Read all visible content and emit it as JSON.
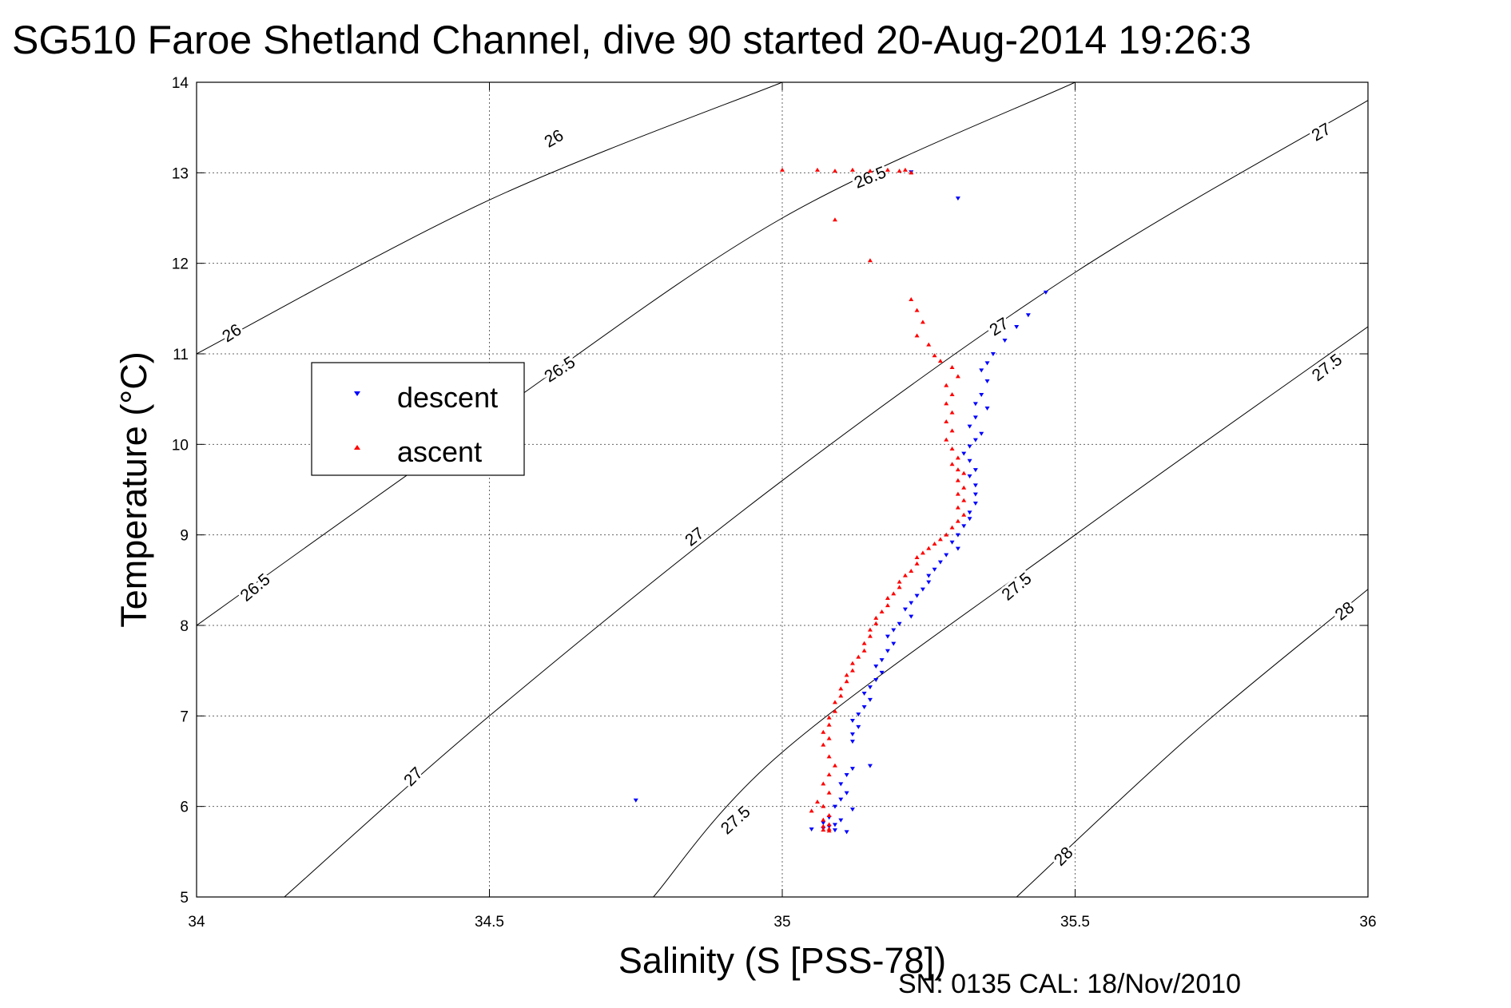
{
  "title": "SG510 Faroe Shetland Channel, dive 90 started 20-Aug-2014 19:26:3",
  "footer": "SN: 0135  CAL: 18/Nov/2010",
  "chart_data": {
    "type": "scatter",
    "title": "SG510 Faroe Shetland Channel, dive 90 started 20-Aug-2014 19:26:3",
    "xlabel": "Salinity (S [PSS-78])",
    "ylabel": "Temperature (°C)",
    "xlim": [
      34,
      36
    ],
    "ylim": [
      5,
      14
    ],
    "xticks": [
      34,
      34.5,
      35,
      35.5,
      36
    ],
    "xtick_labels": [
      "34",
      "34.5",
      "35",
      "35.5",
      "36"
    ],
    "yticks": [
      5,
      6,
      7,
      8,
      9,
      10,
      11,
      12,
      13,
      14
    ],
    "ytick_labels": [
      "5",
      "6",
      "7",
      "8",
      "9",
      "10",
      "11",
      "12",
      "13",
      "14"
    ],
    "grid": true,
    "legend_position": "upper-left",
    "contours": [
      {
        "level": "26",
        "points": [
          [
            34.0,
            11.0
          ],
          [
            34.5,
            12.7
          ],
          [
            35.0,
            14.0
          ]
        ]
      },
      {
        "level": "26.5",
        "points": [
          [
            34.0,
            8.0
          ],
          [
            34.5,
            10.3
          ],
          [
            35.0,
            12.5
          ],
          [
            35.5,
            14.0
          ]
        ]
      },
      {
        "level": "27",
        "points": [
          [
            34.15,
            5.0
          ],
          [
            34.5,
            7.0
          ],
          [
            35.0,
            9.6
          ],
          [
            35.5,
            11.9
          ],
          [
            36.0,
            13.8
          ]
        ]
      },
      {
        "level": "27.5",
        "points": [
          [
            34.78,
            5.0
          ],
          [
            35.0,
            6.6
          ],
          [
            35.5,
            9.0
          ],
          [
            36.0,
            11.3
          ]
        ]
      },
      {
        "level": "28",
        "points": [
          [
            35.4,
            5.0
          ],
          [
            35.7,
            6.8
          ],
          [
            36.0,
            8.4
          ]
        ]
      }
    ],
    "contour_labels": [
      {
        "text": "26",
        "x": 34.61,
        "y": 13.38,
        "angle": -30
      },
      {
        "text": "26",
        "x": 34.06,
        "y": 11.23,
        "angle": -33
      },
      {
        "text": "26.5",
        "x": 34.62,
        "y": 10.83,
        "angle": -33
      },
      {
        "text": "26.5",
        "x": 34.1,
        "y": 8.42,
        "angle": -40
      },
      {
        "text": "26.5",
        "x": 35.15,
        "y": 12.95,
        "angle": -22
      },
      {
        "text": "27",
        "x": 34.85,
        "y": 8.98,
        "angle": -38
      },
      {
        "text": "27",
        "x": 35.37,
        "y": 11.3,
        "angle": -32
      },
      {
        "text": "27",
        "x": 35.92,
        "y": 13.45,
        "angle": -30
      },
      {
        "text": "27",
        "x": 34.37,
        "y": 6.33,
        "angle": -45
      },
      {
        "text": "27.5",
        "x": 34.92,
        "y": 5.85,
        "angle": -42
      },
      {
        "text": "27.5",
        "x": 35.4,
        "y": 8.43,
        "angle": -40
      },
      {
        "text": "27.5",
        "x": 35.93,
        "y": 10.85,
        "angle": -38
      },
      {
        "text": "28",
        "x": 35.48,
        "y": 5.45,
        "angle": -45
      },
      {
        "text": "28",
        "x": 35.96,
        "y": 8.16,
        "angle": -38
      }
    ],
    "series": [
      {
        "name": "descent",
        "color": "#0000ff",
        "marker": "triangle-down",
        "points": [
          [
            34.75,
            6.07
          ],
          [
            35.3,
            12.72
          ],
          [
            35.22,
            13.01
          ],
          [
            35.45,
            11.68
          ],
          [
            35.42,
            11.43
          ],
          [
            35.4,
            11.3
          ],
          [
            35.38,
            11.15
          ],
          [
            35.36,
            11.0
          ],
          [
            35.35,
            10.9
          ],
          [
            35.34,
            10.82
          ],
          [
            35.35,
            10.7
          ],
          [
            35.34,
            10.55
          ],
          [
            35.33,
            10.45
          ],
          [
            35.35,
            10.4
          ],
          [
            35.33,
            10.3
          ],
          [
            35.32,
            10.2
          ],
          [
            35.34,
            10.12
          ],
          [
            35.33,
            10.05
          ],
          [
            35.32,
            9.98
          ],
          [
            35.31,
            9.9
          ],
          [
            35.32,
            9.82
          ],
          [
            35.33,
            9.72
          ],
          [
            35.32,
            9.65
          ],
          [
            35.33,
            9.55
          ],
          [
            35.33,
            9.45
          ],
          [
            35.33,
            9.35
          ],
          [
            35.32,
            9.25
          ],
          [
            35.32,
            9.18
          ],
          [
            35.31,
            9.1
          ],
          [
            35.3,
            9.0
          ],
          [
            35.29,
            8.92
          ],
          [
            35.3,
            8.85
          ],
          [
            35.28,
            8.78
          ],
          [
            35.27,
            8.7
          ],
          [
            35.26,
            8.62
          ],
          [
            35.25,
            8.55
          ],
          [
            35.25,
            8.48
          ],
          [
            35.24,
            8.4
          ],
          [
            35.23,
            8.33
          ],
          [
            35.22,
            8.25
          ],
          [
            35.21,
            8.18
          ],
          [
            35.22,
            8.1
          ],
          [
            35.2,
            8.02
          ],
          [
            35.19,
            7.95
          ],
          [
            35.18,
            7.88
          ],
          [
            35.19,
            7.8
          ],
          [
            35.18,
            7.72
          ],
          [
            35.17,
            7.62
          ],
          [
            35.16,
            7.55
          ],
          [
            35.17,
            7.48
          ],
          [
            35.16,
            7.4
          ],
          [
            35.15,
            7.32
          ],
          [
            35.14,
            7.25
          ],
          [
            35.15,
            7.18
          ],
          [
            35.14,
            7.1
          ],
          [
            35.13,
            7.02
          ],
          [
            35.12,
            6.95
          ],
          [
            35.13,
            6.88
          ],
          [
            35.12,
            6.8
          ],
          [
            35.12,
            6.72
          ],
          [
            35.15,
            6.45
          ],
          [
            35.12,
            6.42
          ],
          [
            35.11,
            6.35
          ],
          [
            35.1,
            6.25
          ],
          [
            35.11,
            6.15
          ],
          [
            35.1,
            6.08
          ],
          [
            35.09,
            6.0
          ],
          [
            35.12,
            5.97
          ],
          [
            35.08,
            5.88
          ],
          [
            35.1,
            5.85
          ],
          [
            35.07,
            5.82
          ],
          [
            35.09,
            5.8
          ],
          [
            35.05,
            5.75
          ],
          [
            35.08,
            5.78
          ],
          [
            35.07,
            5.76
          ],
          [
            35.11,
            5.72
          ],
          [
            35.09,
            5.74
          ]
        ]
      },
      {
        "name": "ascent",
        "color": "#ff0000",
        "marker": "triangle-up",
        "points": [
          [
            35.0,
            13.03
          ],
          [
            35.06,
            13.03
          ],
          [
            35.09,
            13.02
          ],
          [
            35.12,
            13.03
          ],
          [
            35.15,
            13.02
          ],
          [
            35.18,
            13.03
          ],
          [
            35.2,
            13.02
          ],
          [
            35.21,
            13.03
          ],
          [
            35.22,
            13.0
          ],
          [
            35.09,
            12.48
          ],
          [
            35.15,
            12.03
          ],
          [
            35.22,
            11.6
          ],
          [
            35.23,
            11.48
          ],
          [
            35.24,
            11.35
          ],
          [
            35.23,
            11.2
          ],
          [
            35.25,
            11.1
          ],
          [
            35.26,
            10.98
          ],
          [
            35.27,
            10.92
          ],
          [
            35.29,
            10.85
          ],
          [
            35.3,
            10.75
          ],
          [
            35.28,
            10.65
          ],
          [
            35.29,
            10.55
          ],
          [
            35.28,
            10.45
          ],
          [
            35.29,
            10.35
          ],
          [
            35.28,
            10.25
          ],
          [
            35.29,
            10.15
          ],
          [
            35.28,
            10.05
          ],
          [
            35.29,
            9.95
          ],
          [
            35.3,
            9.85
          ],
          [
            35.29,
            9.78
          ],
          [
            35.3,
            9.72
          ],
          [
            35.31,
            9.68
          ],
          [
            35.3,
            9.6
          ],
          [
            35.31,
            9.52
          ],
          [
            35.3,
            9.45
          ],
          [
            35.31,
            9.38
          ],
          [
            35.3,
            9.3
          ],
          [
            35.31,
            9.22
          ],
          [
            35.3,
            9.15
          ],
          [
            35.29,
            9.08
          ],
          [
            35.28,
            9.0
          ],
          [
            35.27,
            8.95
          ],
          [
            35.26,
            8.9
          ],
          [
            35.25,
            8.85
          ],
          [
            35.24,
            8.8
          ],
          [
            35.23,
            8.75
          ],
          [
            35.23,
            8.68
          ],
          [
            35.22,
            8.6
          ],
          [
            35.21,
            8.55
          ],
          [
            35.2,
            8.48
          ],
          [
            35.2,
            8.42
          ],
          [
            35.19,
            8.35
          ],
          [
            35.18,
            8.3
          ],
          [
            35.18,
            8.22
          ],
          [
            35.17,
            8.15
          ],
          [
            35.16,
            8.08
          ],
          [
            35.16,
            8.02
          ],
          [
            35.15,
            7.95
          ],
          [
            35.15,
            7.88
          ],
          [
            35.14,
            7.8
          ],
          [
            35.14,
            7.72
          ],
          [
            35.13,
            7.65
          ],
          [
            35.12,
            7.58
          ],
          [
            35.12,
            7.5
          ],
          [
            35.11,
            7.45
          ],
          [
            35.11,
            7.38
          ],
          [
            35.1,
            7.3
          ],
          [
            35.1,
            7.22
          ],
          [
            35.09,
            7.15
          ],
          [
            35.09,
            7.05
          ],
          [
            35.08,
            6.98
          ],
          [
            35.08,
            6.9
          ],
          [
            35.07,
            6.82
          ],
          [
            35.08,
            6.75
          ],
          [
            35.07,
            6.68
          ],
          [
            35.08,
            6.55
          ],
          [
            35.09,
            6.45
          ],
          [
            35.08,
            6.35
          ],
          [
            35.07,
            6.25
          ],
          [
            35.08,
            6.15
          ],
          [
            35.06,
            6.05
          ],
          [
            35.07,
            6.0
          ],
          [
            35.05,
            5.95
          ],
          [
            35.08,
            5.9
          ],
          [
            35.07,
            5.85
          ],
          [
            35.08,
            5.8
          ],
          [
            35.07,
            5.78
          ],
          [
            35.08,
            5.75
          ],
          [
            35.07,
            5.74
          ],
          [
            35.08,
            5.73
          ]
        ]
      }
    ]
  }
}
